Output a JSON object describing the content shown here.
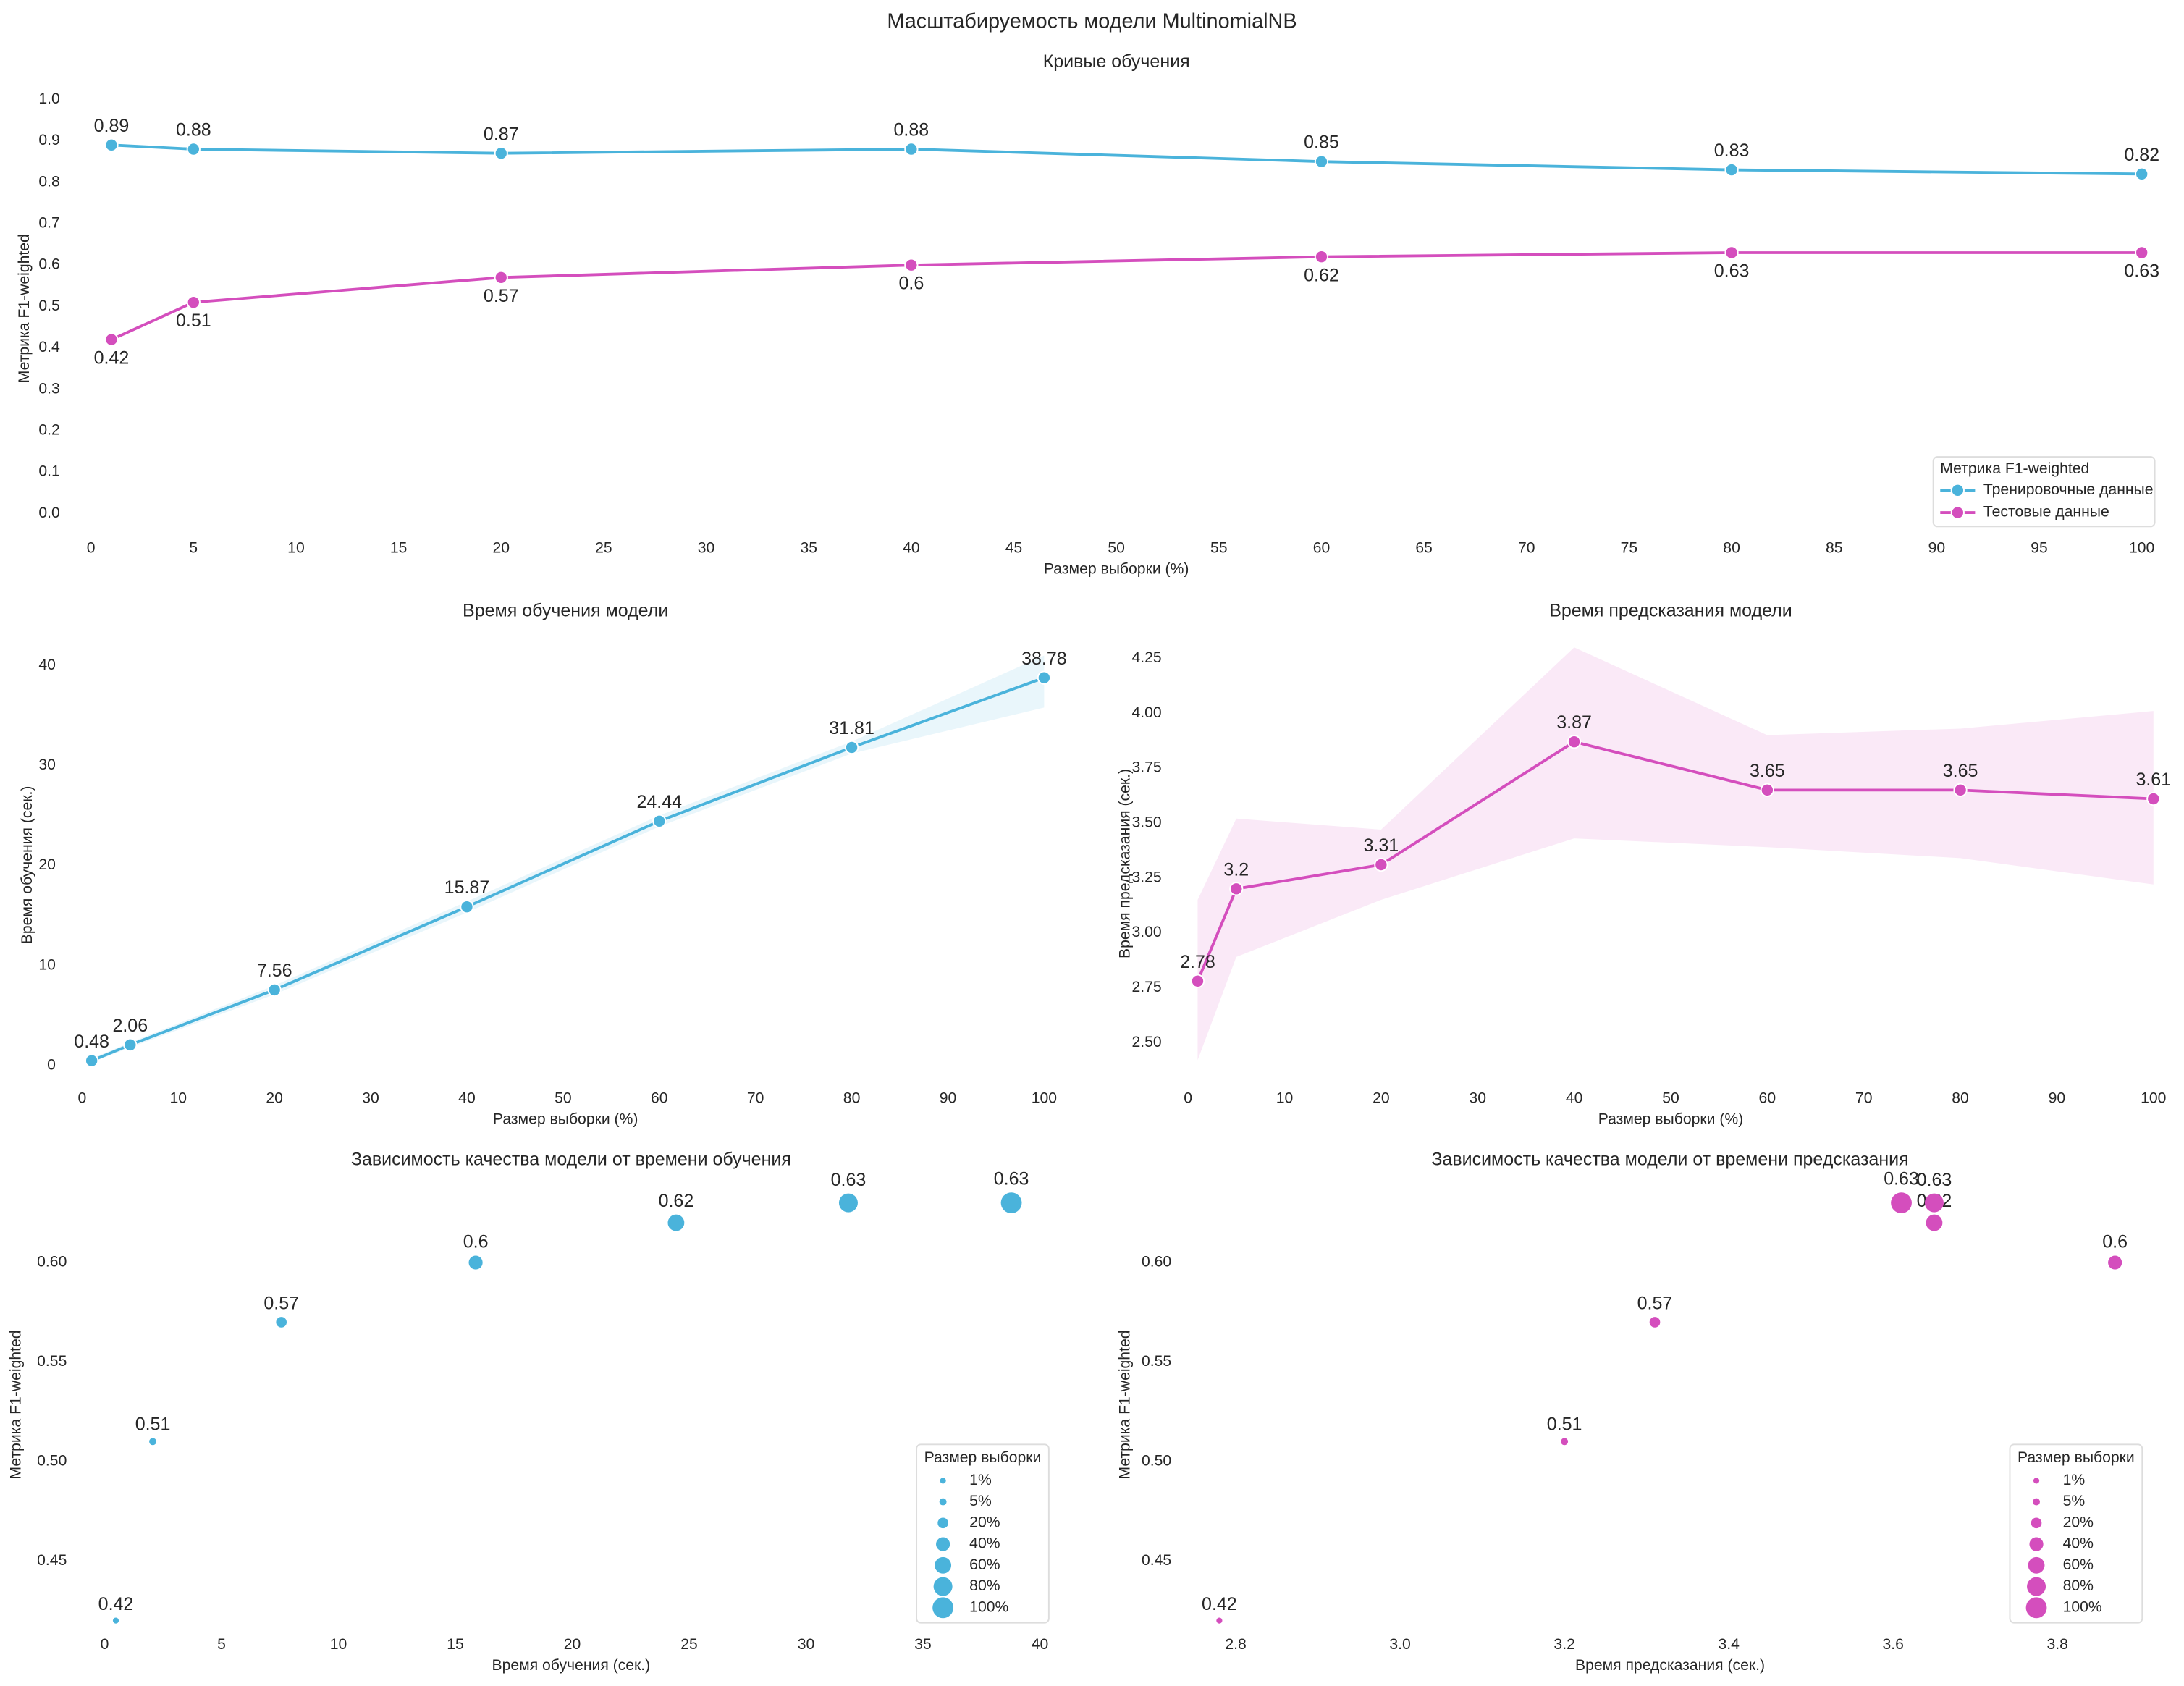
{
  "title": "Масштабируемость модели MultinomialNB",
  "chart_data": [
    {
      "type": "line",
      "title": "Кривые обучения",
      "xlabel": "Размер выборки (%)",
      "ylabel": "Метрика F1-weighted",
      "x": [
        1,
        5,
        20,
        40,
        60,
        80,
        100
      ],
      "series": [
        {
          "name": "Тренировочные данные",
          "color": "#4ab3db",
          "values": [
            0.89,
            0.88,
            0.87,
            0.88,
            0.85,
            0.83,
            0.82
          ]
        },
        {
          "name": "Тестовые данные",
          "color": "#d44ebd",
          "values": [
            0.42,
            0.51,
            0.57,
            0.6,
            0.62,
            0.63,
            0.63
          ]
        }
      ],
      "xlim": [
        -0.7,
        100.7
      ],
      "xticks": [
        0,
        5,
        10,
        15,
        20,
        25,
        30,
        35,
        40,
        45,
        50,
        55,
        60,
        65,
        70,
        75,
        80,
        85,
        90,
        95,
        100
      ],
      "ylim": [
        -0.055,
        1.045
      ],
      "yticks": [
        {
          "value": 0,
          "label": "0.0"
        },
        0.1,
        0.2,
        0.3,
        0.4,
        0.5,
        0.6,
        0.7,
        0.8,
        0.9,
        {
          "value": 1,
          "label": "1.0"
        }
      ],
      "grid": false,
      "legend": "lower right",
      "legend_title": "Метрика F1-weighted"
    },
    {
      "type": "line",
      "title": "Время обучения модели",
      "xlabel": "Размер выборки (%)",
      "ylabel": "Время обучения (сек.)",
      "x": [
        1,
        5,
        20,
        40,
        60,
        80,
        100
      ],
      "color": "#4ab3db",
      "values": [
        0.48,
        2.06,
        7.56,
        15.87,
        24.44,
        31.81,
        38.78
      ],
      "lower": [
        0.3,
        1.8,
        7.1,
        15.3,
        23.9,
        31.2,
        35.8
      ],
      "upper": [
        0.7,
        2.3,
        8.0,
        16.4,
        25.0,
        32.4,
        41.0
      ],
      "xlim": [
        -1,
        101.5
      ],
      "xticks": [
        0,
        10,
        20,
        30,
        40,
        50,
        60,
        70,
        80,
        90,
        100
      ],
      "ylim": [
        -2.1,
        42.2
      ],
      "yticks": [
        0,
        10,
        20,
        30,
        40
      ],
      "grid": false
    },
    {
      "type": "line",
      "title": "Время предсказания модели",
      "xlabel": "Размер выборки (%)",
      "ylabel": "Время предсказания (сек.)",
      "x": [
        1,
        5,
        20,
        40,
        60,
        80,
        100
      ],
      "color": "#d44ebd",
      "values": [
        2.78,
        3.2,
        3.31,
        3.87,
        3.65,
        3.65,
        3.61
      ],
      "lower": [
        2.42,
        2.89,
        3.15,
        3.43,
        3.39,
        3.34,
        3.22
      ],
      "upper": [
        3.15,
        3.52,
        3.47,
        4.3,
        3.9,
        3.93,
        4.01
      ],
      "xlim": [
        -1,
        101
      ],
      "xticks": [
        0,
        10,
        20,
        30,
        40,
        50,
        60,
        70,
        80,
        90,
        100
      ],
      "ylim": [
        2.3,
        4.33
      ],
      "yticks": [
        {
          "value": 2.5,
          "label": "2.50"
        },
        2.75,
        {
          "value": 3,
          "label": "3.00"
        },
        3.25,
        {
          "value": 3.5,
          "label": "3.50"
        },
        3.75,
        {
          "value": 4,
          "label": "4.00"
        },
        4.25
      ],
      "grid": false
    },
    {
      "type": "scatter",
      "title": "Зависимость качества модели от времени обучения",
      "xlabel": "Время обучения (сек.)",
      "ylabel": "Метрика F1-weighted",
      "color": "#4ab3db",
      "x": [
        0.48,
        2.06,
        7.56,
        15.87,
        24.44,
        31.81,
        38.78
      ],
      "values": [
        0.42,
        0.51,
        0.57,
        0.6,
        0.62,
        0.63,
        0.63
      ],
      "sizes": [
        1,
        5,
        20,
        40,
        60,
        80,
        100
      ],
      "size_labels": [
        "1%",
        "5%",
        "20%",
        "40%",
        "60%",
        "80%",
        "100%"
      ],
      "xlim": [
        -0.9,
        40.8
      ],
      "xticks": [
        0,
        5,
        10,
        15,
        20,
        25,
        30,
        35,
        40
      ],
      "ylim": [
        0.414,
        0.643
      ],
      "yticks": [
        0.45,
        {
          "value": 0.5,
          "label": "0.50"
        },
        0.55,
        {
          "value": 0.6,
          "label": "0.60"
        }
      ],
      "grid": false,
      "legend": "lower right",
      "legend_title": "Размер выборки"
    },
    {
      "type": "scatter",
      "title": "Зависимость качества модели от времени предсказания",
      "xlabel": "Время предсказания (сек.)",
      "ylabel": "Метрика F1-weighted",
      "color": "#d44ebd",
      "x": [
        2.78,
        3.2,
        3.31,
        3.87,
        3.65,
        3.65,
        3.61
      ],
      "values": [
        0.42,
        0.51,
        0.57,
        0.6,
        0.62,
        0.63,
        0.63
      ],
      "sizes": [
        1,
        5,
        20,
        40,
        60,
        80,
        100
      ],
      "size_labels": [
        "1%",
        "5%",
        "20%",
        "40%",
        "60%",
        "80%",
        "100%"
      ],
      "xlim": [
        2.742,
        3.915
      ],
      "xticks": [
        2.8,
        {
          "value": 3,
          "label": "3.0"
        },
        3.2,
        3.4,
        3.6,
        3.8
      ],
      "ylim": [
        0.414,
        0.643
      ],
      "yticks": [
        0.45,
        {
          "value": 0.5,
          "label": "0.50"
        },
        0.55,
        {
          "value": 0.6,
          "label": "0.60"
        }
      ],
      "grid": false,
      "legend": "lower right",
      "legend_title": "Размер выборки"
    }
  ]
}
